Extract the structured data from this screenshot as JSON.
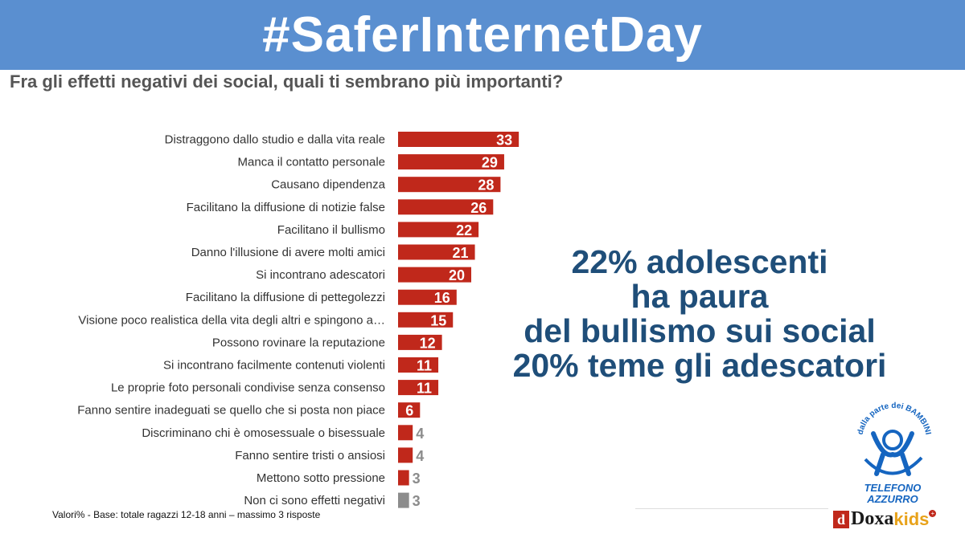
{
  "banner": {
    "title": "#SaferInternetDay"
  },
  "question": "Fra gli effetti negativi dei social, quali ti sembrano più importanti?",
  "callout": {
    "lines": [
      "22% adolescenti",
      "ha paura",
      "del bullismo sui social",
      "20% teme gli adescatori"
    ]
  },
  "footnote": "Valori% - Base: totale ragazzi 12-18 anni – massimo 3 risposte",
  "logos": {
    "telefono_arc": "dalla parte dei BAMBINI",
    "telefono_line1": "TELEFONO",
    "telefono_line2": "AZZURRO",
    "doxa_box": "d",
    "doxa_word": "Doxa",
    "doxa_kids": "kids",
    "doxa_plus": "+"
  },
  "colors": {
    "banner": "#5a8fd0",
    "bar": "#c0281b",
    "bar_none": "#8c8c8c",
    "callout": "#1f4e79"
  },
  "chart_data": {
    "type": "bar",
    "orientation": "horizontal",
    "categories": [
      "Distraggono dallo studio e dalla vita reale",
      "Manca il contatto personale",
      "Causano dipendenza",
      "Facilitano la diffusione di notizie false",
      "Facilitano il bullismo",
      "Danno l'illusione di avere molti amici",
      "Si incontrano adescatori",
      "Facilitano la diffusione di pettegolezzi",
      "Visione poco realistica della vita degli altri e spingono a…",
      "Possono rovinare la reputazione",
      "Si incontrano facilmente contenuti violenti",
      "Le proprie foto personali condivise senza consenso",
      "Fanno sentire inadeguati se quello che si posta non piace",
      "Discriminano chi è omosessuale o bisessuale",
      "Fanno sentire tristi o ansiosi",
      "Mettono sotto pressione",
      "Non ci sono effetti negativi"
    ],
    "values": [
      33,
      29,
      28,
      26,
      22,
      21,
      20,
      16,
      15,
      12,
      11,
      11,
      6,
      4,
      4,
      3,
      3
    ],
    "labels": [
      "33",
      "29",
      "28",
      "26",
      "22",
      "21",
      "20",
      "16",
      "15",
      "12",
      "11",
      "11",
      "6",
      "4",
      "4",
      "3",
      "3"
    ],
    "title": "",
    "xlabel": "",
    "ylabel": "",
    "grid": false,
    "legend": "none"
  }
}
